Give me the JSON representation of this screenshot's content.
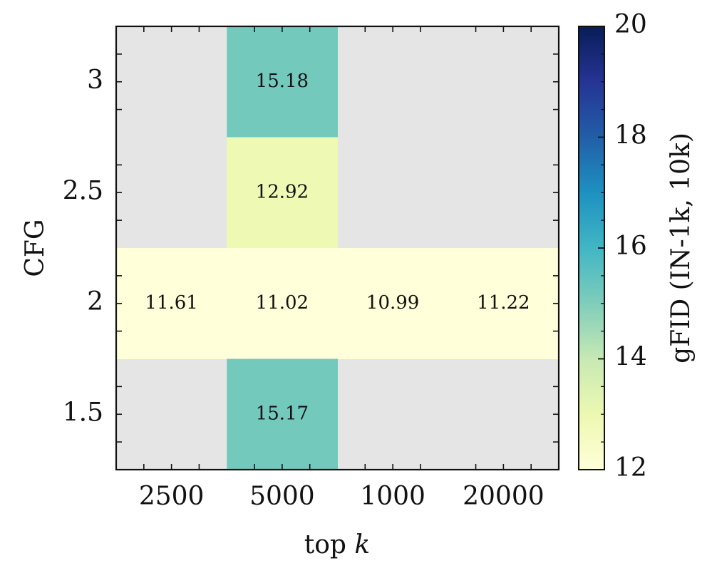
{
  "chart_data": {
    "type": "heatmap",
    "x_categories": [
      "2500",
      "5000",
      "1000",
      "20000"
    ],
    "y_categories": [
      "3",
      "2.5",
      "2",
      "1.5"
    ],
    "xlabel": "top",
    "xlabel_var": "k",
    "ylabel": "CFG",
    "colorbar": {
      "label": "gFID (IN-1k, 10k)",
      "min": 12,
      "max": 20,
      "ticks": [
        "12",
        "14",
        "16",
        "18",
        "20"
      ],
      "colormap": "YlGnBu"
    },
    "missing_color": "#e5e5e5",
    "cells": [
      {
        "x": "5000",
        "y": "3",
        "value": 15.18,
        "label": "15.18"
      },
      {
        "x": "5000",
        "y": "2.5",
        "value": 12.92,
        "label": "12.92"
      },
      {
        "x": "2500",
        "y": "2",
        "value": 11.61,
        "label": "11.61"
      },
      {
        "x": "5000",
        "y": "2",
        "value": 11.02,
        "label": "11.02"
      },
      {
        "x": "1000",
        "y": "2",
        "value": 10.99,
        "label": "10.99"
      },
      {
        "x": "20000",
        "y": "2",
        "value": 11.22,
        "label": "11.22"
      },
      {
        "x": "5000",
        "y": "1.5",
        "value": 15.17,
        "label": "15.17"
      }
    ]
  }
}
